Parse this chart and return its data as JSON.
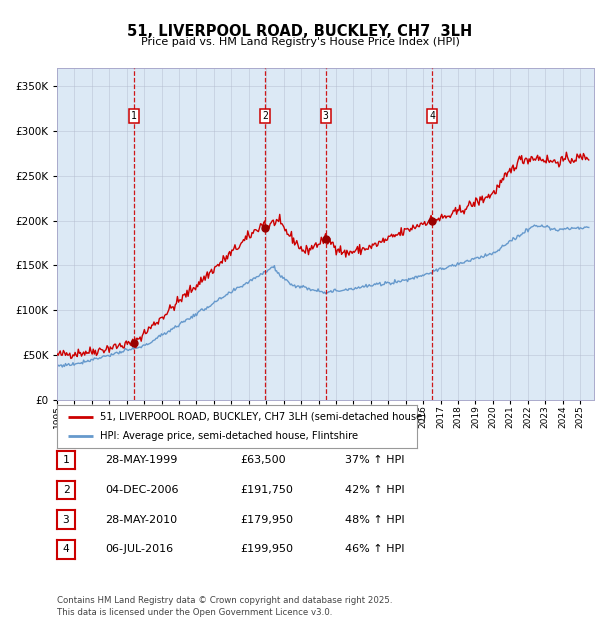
{
  "title": "51, LIVERPOOL ROAD, BUCKLEY, CH7  3LH",
  "subtitle": "Price paid vs. HM Land Registry's House Price Index (HPI)",
  "background_color": "#dce9f5",
  "plot_bg_color": "#dce9f5",
  "ylim": [
    0,
    370000
  ],
  "yticks": [
    0,
    50000,
    100000,
    150000,
    200000,
    250000,
    300000,
    350000
  ],
  "red_line_color": "#cc0000",
  "blue_line_color": "#6699cc",
  "sale_marker_color": "#990000",
  "vline_color": "#cc0000",
  "grid_color": "#b0b8cc",
  "sale_events": [
    {
      "label": "1",
      "date_num": 1999.41,
      "price": 63500
    },
    {
      "label": "2",
      "date_num": 2006.92,
      "price": 191750
    },
    {
      "label": "3",
      "date_num": 2010.41,
      "price": 179950
    },
    {
      "label": "4",
      "date_num": 2016.51,
      "price": 199950
    }
  ],
  "legend_entries": [
    {
      "label": "51, LIVERPOOL ROAD, BUCKLEY, CH7 3LH (semi-detached house)",
      "color": "#cc0000"
    },
    {
      "label": "HPI: Average price, semi-detached house, Flintshire",
      "color": "#6699cc"
    }
  ],
  "table_rows": [
    {
      "num": "1",
      "date": "28-MAY-1999",
      "price": "£63,500",
      "hpi": "37% ↑ HPI"
    },
    {
      "num": "2",
      "date": "04-DEC-2006",
      "price": "£191,750",
      "hpi": "42% ↑ HPI"
    },
    {
      "num": "3",
      "date": "28-MAY-2010",
      "price": "£179,950",
      "hpi": "48% ↑ HPI"
    },
    {
      "num": "4",
      "date": "06-JUL-2016",
      "price": "£199,950",
      "hpi": "46% ↑ HPI"
    }
  ],
  "footer": "Contains HM Land Registry data © Crown copyright and database right 2025.\nThis data is licensed under the Open Government Licence v3.0.",
  "xmin": 1995.0,
  "xmax": 2025.8
}
